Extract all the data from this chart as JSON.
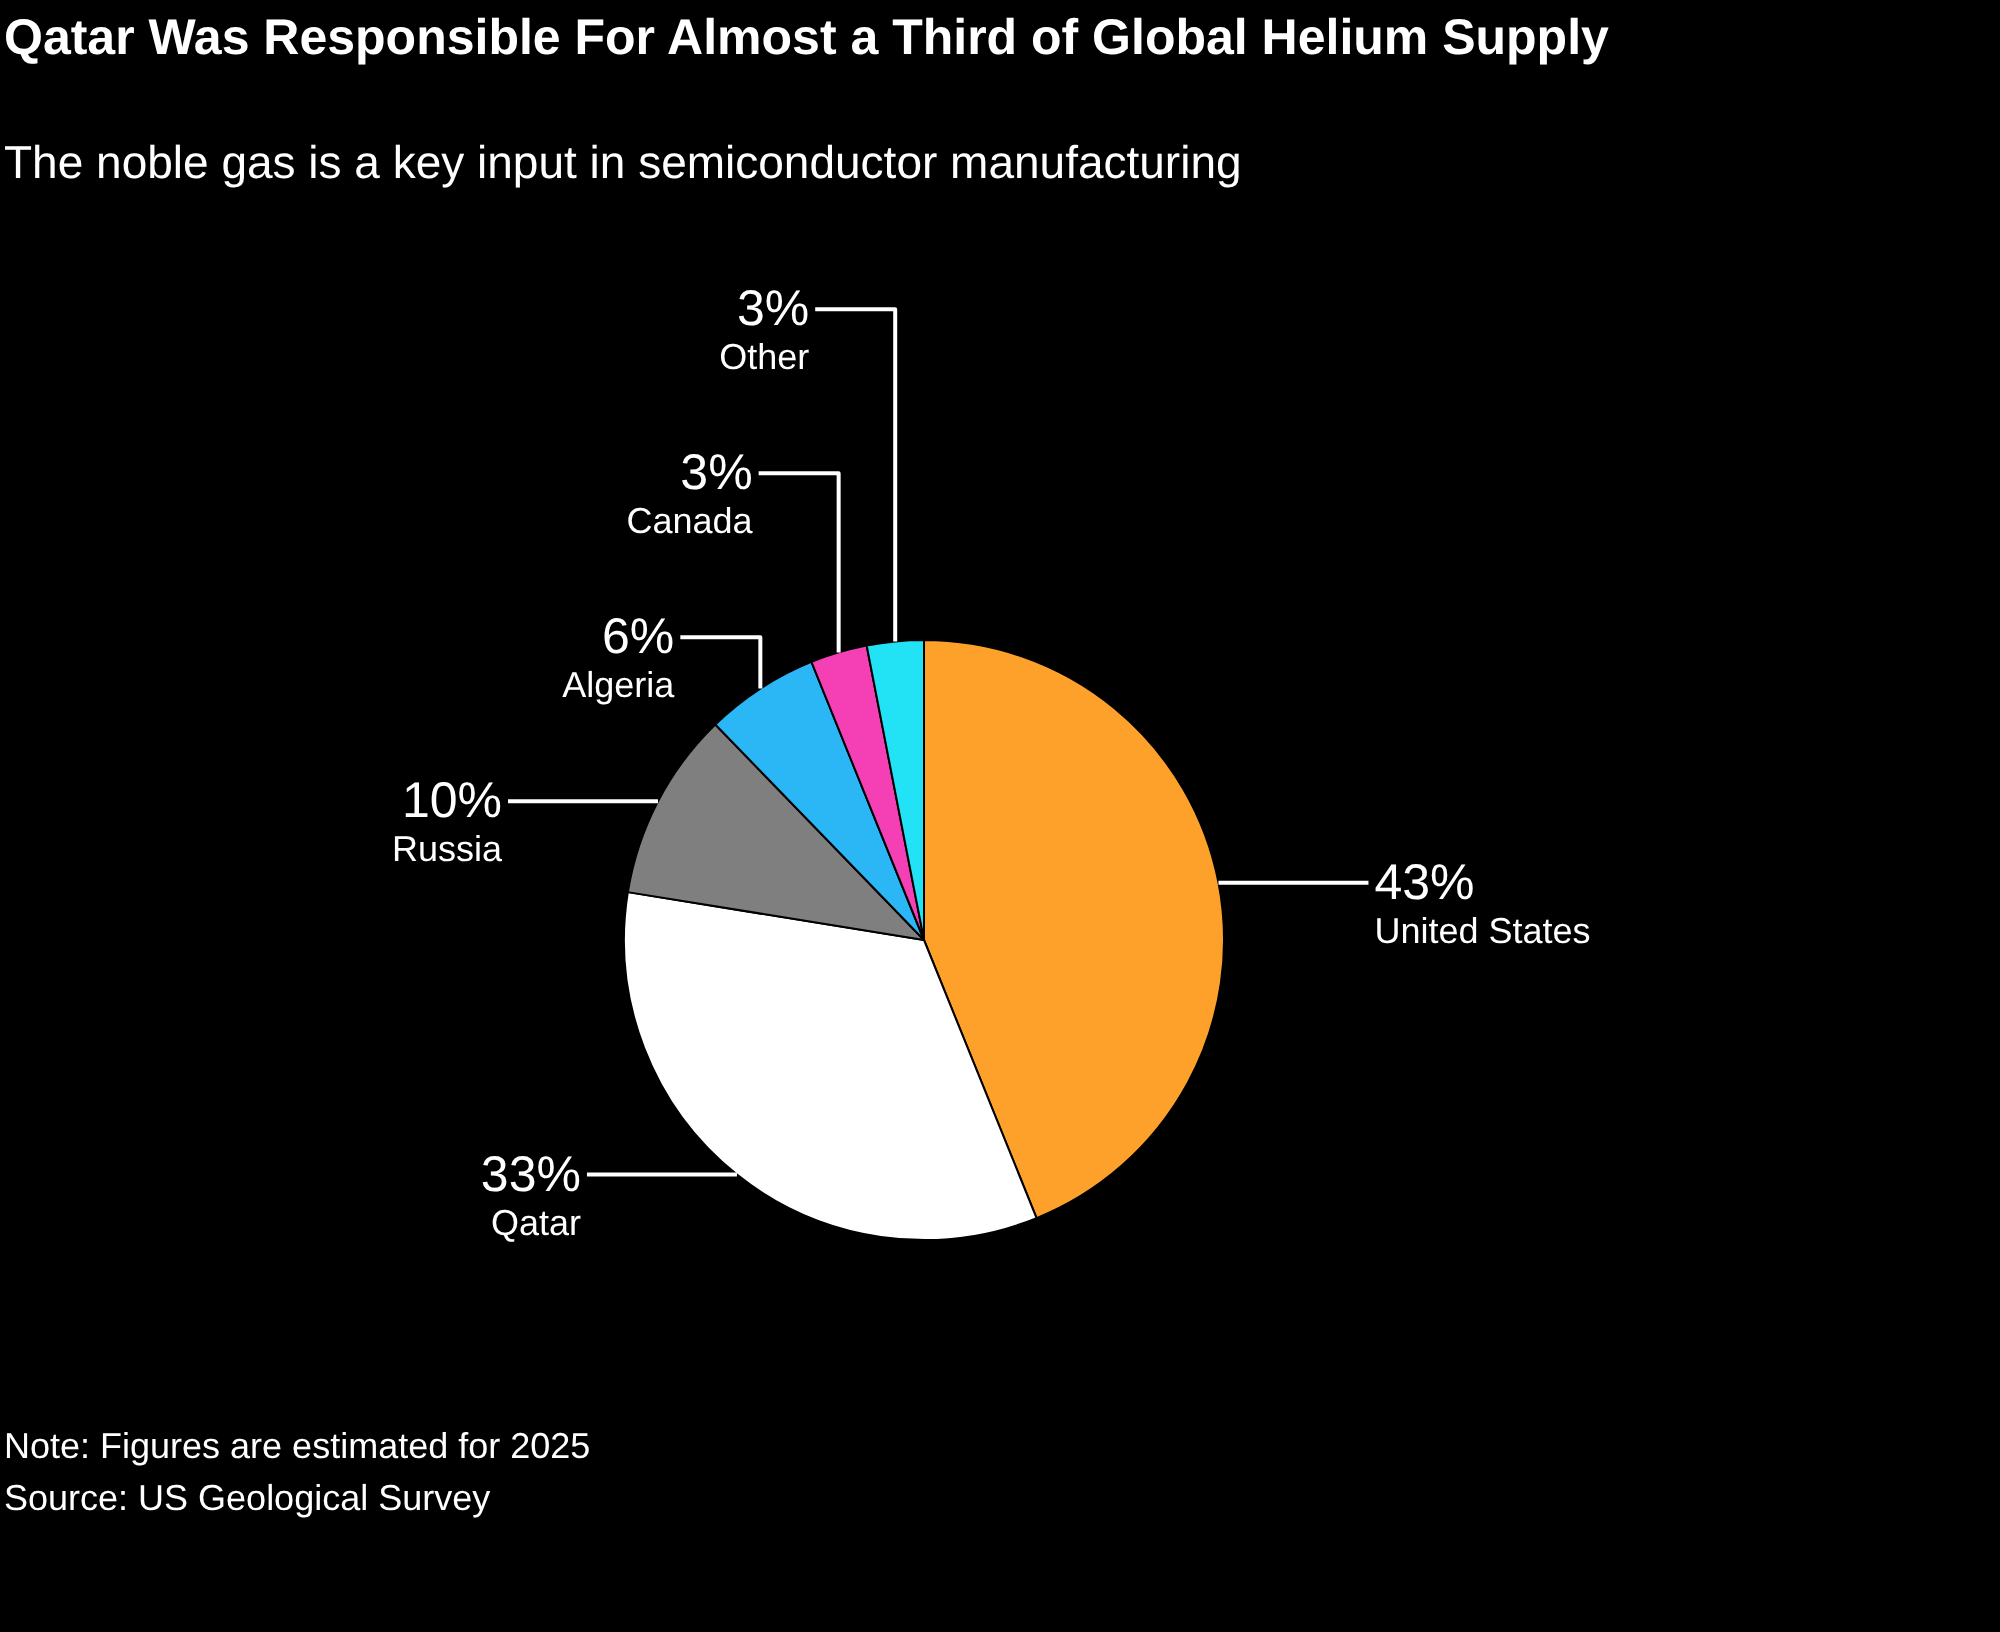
{
  "chart_data": {
    "type": "pie",
    "title": "Qatar Was Responsible For Almost a Third of Global Helium Supply",
    "subtitle": "The noble gas is a key input in semiconductor manufacturing",
    "categories": [
      "United States",
      "Qatar",
      "Russia",
      "Algeria",
      "Canada",
      "Other"
    ],
    "values": [
      43,
      33,
      10,
      6,
      3,
      3
    ],
    "value_labels": [
      "43%",
      "33%",
      "10%",
      "6%",
      "3%",
      "3%"
    ],
    "colors": [
      "#fda12a",
      "#ffffff",
      "#7f7f7f",
      "#2bb7f6",
      "#f53fb4",
      "#22e3f5"
    ],
    "legend": false,
    "annotations": [
      "Note: Figures are estimated for 2025",
      "Source: US Geological Survey"
    ]
  }
}
